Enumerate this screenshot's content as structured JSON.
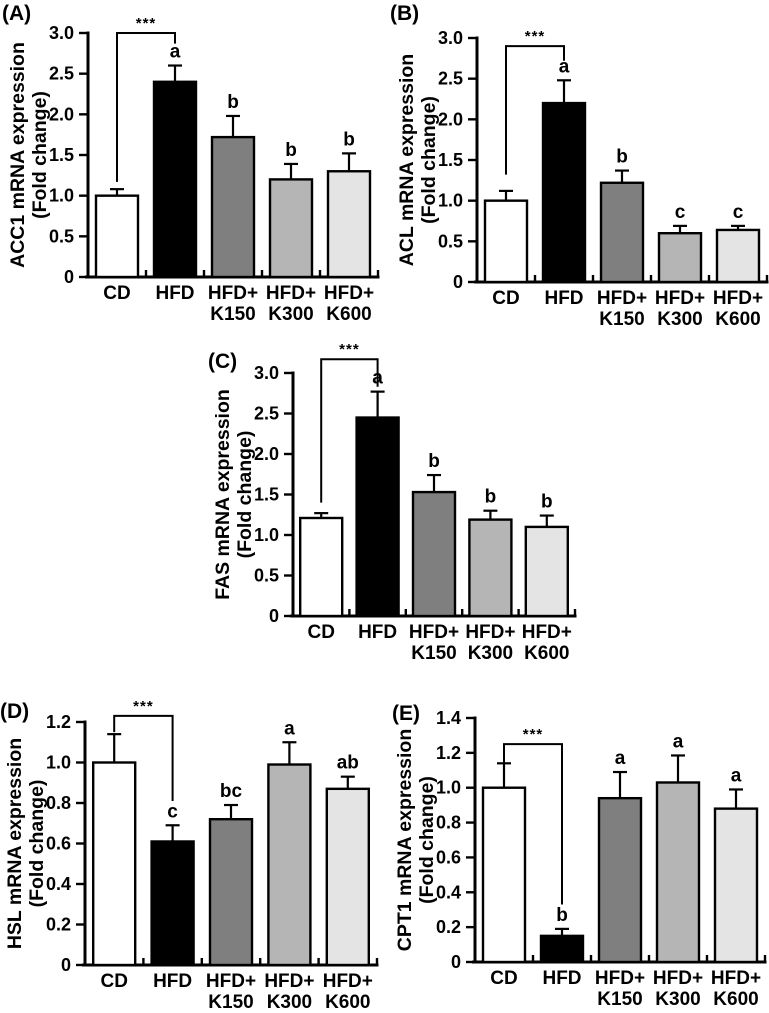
{
  "bar_colors": [
    "#ffffff",
    "#000000",
    "#7f7f7f",
    "#b5b5b5",
    "#e4e4e4"
  ],
  "chart_data": [
    {
      "id": "A",
      "panel_label": "(A)",
      "type": "bar",
      "gene": "ACC1",
      "ylabel_lines": [
        "ACC1 mRNA expression",
        "(Fold change)"
      ],
      "categories": [
        "CD",
        "HFD",
        "HFD+\nK150",
        "HFD+\nK300",
        "HFD+\nK600"
      ],
      "values": [
        1.0,
        2.4,
        1.72,
        1.2,
        1.3
      ],
      "errors": [
        0.08,
        0.2,
        0.26,
        0.19,
        0.22
      ],
      "letters": [
        "",
        "a",
        "b",
        "b",
        "b"
      ],
      "ylim": [
        0,
        3.0
      ],
      "yticks": [
        "0",
        "0.5",
        "1.0",
        "1.5",
        "2.0",
        "2.5",
        "3.0"
      ],
      "significance": {
        "label": "***",
        "from": 0,
        "to": 1,
        "bar_y": 3.0,
        "left_end": 1.17,
        "right_end": 2.87
      }
    },
    {
      "id": "B",
      "panel_label": "(B)",
      "type": "bar",
      "gene": "ACL",
      "ylabel_lines": [
        "ACL mRNA expression",
        "(Fold change)"
      ],
      "categories": [
        "CD",
        "HFD",
        "HFD+\nK150",
        "HFD+\nK300",
        "HFD+\nK600"
      ],
      "values": [
        1.0,
        2.2,
        1.22,
        0.6,
        0.64
      ],
      "errors": [
        0.12,
        0.28,
        0.15,
        0.09,
        0.05
      ],
      "letters": [
        "",
        "a",
        "b",
        "c",
        "c"
      ],
      "ylim": [
        0,
        3.0
      ],
      "yticks": [
        "0",
        "0.5",
        "1.0",
        "1.5",
        "2.0",
        "2.5",
        "3.0"
      ],
      "significance": {
        "label": "***",
        "from": 0,
        "to": 1,
        "bar_y": 2.9,
        "left_end": 1.32,
        "right_end": 2.72
      }
    },
    {
      "id": "C",
      "panel_label": "(C)",
      "type": "bar",
      "gene": "FAS",
      "ylabel_lines": [
        "FAS mRNA expression",
        "(Fold change)"
      ],
      "categories": [
        "CD",
        "HFD",
        "HFD+\nK150",
        "HFD+\nK300",
        "HFD+\nK600"
      ],
      "values": [
        1.21,
        2.45,
        1.53,
        1.19,
        1.1
      ],
      "errors": [
        0.06,
        0.32,
        0.21,
        0.11,
        0.14
      ],
      "letters": [
        "",
        "a",
        "b",
        "b",
        "b"
      ],
      "ylim": [
        0,
        3.0
      ],
      "yticks": [
        "0",
        "0.5",
        "1.0",
        "1.5",
        "2.0",
        "2.5",
        "3.0"
      ],
      "significance": {
        "label": "***",
        "from": 0,
        "to": 1,
        "bar_y": 3.17,
        "left_end": 1.4,
        "right_end": 2.83
      }
    },
    {
      "id": "D",
      "panel_label": "(D)",
      "type": "bar",
      "gene": "HSL",
      "ylabel_lines": [
        "HSL mRNA expression",
        "(Fold change)"
      ],
      "categories": [
        "CD",
        "HFD",
        "HFD+\nK150",
        "HFD+\nK300",
        "HFD+\nK600"
      ],
      "values": [
        1.0,
        0.61,
        0.72,
        0.99,
        0.87
      ],
      "errors": [
        0.14,
        0.08,
        0.07,
        0.11,
        0.06
      ],
      "letters": [
        "",
        "c",
        "bc",
        "a",
        "ab"
      ],
      "ylim": [
        0,
        1.2
      ],
      "yticks": [
        "0",
        "0.2",
        "0.4",
        "0.6",
        "0.8",
        "1.0",
        "1.2"
      ],
      "significance": {
        "label": "***",
        "from": 0,
        "to": 1,
        "bar_y": 1.23,
        "left_end": 1.15,
        "right_end": 0.81
      }
    },
    {
      "id": "E",
      "panel_label": "(E)",
      "type": "bar",
      "gene": "CPT1",
      "ylabel_lines": [
        "CPT1 mRNA expression",
        "(Fold change)"
      ],
      "categories": [
        "CD",
        "HFD",
        "HFD+\nK150",
        "HFD+\nK300",
        "HFD+\nK600"
      ],
      "values": [
        1.0,
        0.15,
        0.94,
        1.03,
        0.88
      ],
      "errors": [
        0.14,
        0.04,
        0.15,
        0.155,
        0.11
      ],
      "letters": [
        "",
        "b",
        "a",
        "a",
        "a"
      ],
      "ylim": [
        0,
        1.4
      ],
      "yticks": [
        "0",
        "0.2",
        "0.4",
        "0.6",
        "0.8",
        "1.0",
        "1.2",
        "1.4"
      ],
      "significance": {
        "label": "***",
        "from": 0,
        "to": 1,
        "bar_y": 1.25,
        "left_end": 1.14,
        "right_end": 0.33
      }
    }
  ]
}
